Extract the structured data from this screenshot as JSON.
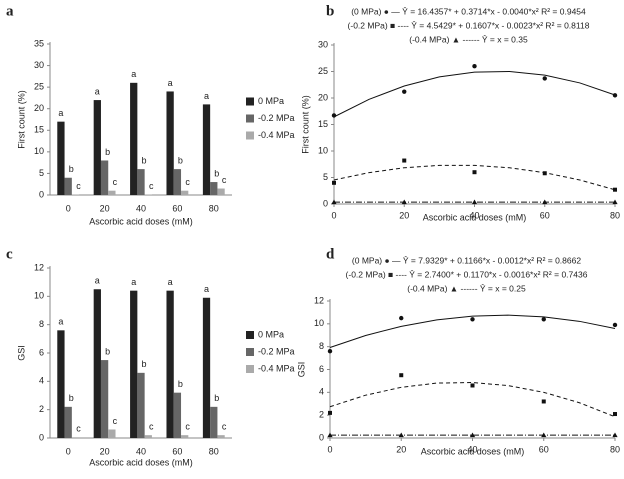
{
  "chart_data": [
    {
      "type": "bar",
      "label": "a",
      "ylabel": "First count (%)",
      "xlabel": "Ascorbic acid doses (mM)",
      "categories": [
        "0",
        "20",
        "40",
        "60",
        "80"
      ],
      "ylim": [
        0,
        35
      ],
      "yticks": [
        0,
        5,
        10,
        15,
        20,
        25,
        30,
        35
      ],
      "series": [
        {
          "name": "0 MPa",
          "color": "#222222",
          "values": [
            17,
            22,
            26,
            24,
            21
          ],
          "letters": [
            "a",
            "a",
            "a",
            "a",
            "a"
          ]
        },
        {
          "name": "-0.2 MPa",
          "color": "#666666",
          "values": [
            4,
            8,
            6,
            6,
            3
          ],
          "letters": [
            "b",
            "b",
            "b",
            "b",
            "b"
          ]
        },
        {
          "name": "-0.4 MPa",
          "color": "#aaaaaa",
          "values": [
            0.1,
            1,
            0.1,
            1,
            1.5
          ],
          "letters": [
            "c",
            "c",
            "c",
            "c",
            "c"
          ]
        }
      ]
    },
    {
      "type": "scatter",
      "label": "b",
      "ylabel": "First count (%)",
      "xlabel": "Ascorbic acid doses (mM)",
      "x": [
        0,
        20,
        40,
        60,
        80
      ],
      "fit_x": [
        0,
        10,
        20,
        30,
        40,
        50,
        60,
        70,
        80
      ],
      "xlim": [
        0,
        80
      ],
      "xticks": [
        0,
        20,
        40,
        60,
        80
      ],
      "ylim": [
        0,
        30
      ],
      "yticks": [
        0,
        5,
        10,
        15,
        20,
        25,
        30
      ],
      "series": [
        {
          "equation": "(0 MPa) ● — Ŷ = 16.4357* + 0.3714*x - 0.0040*x²   R² = 0.9454",
          "marker": "circle",
          "line_style": "solid",
          "color": "#111111",
          "values": [
            16.7,
            21.2,
            26,
            23.7,
            20.5
          ],
          "fit": [
            16.44,
            19.75,
            22.26,
            23.98,
            24.89,
            25.01,
            24.32,
            22.84,
            20.56
          ]
        },
        {
          "equation": "(-0.2 MPa) ■ ---- Ŷ = 4.5429* + 0.1607*x - 0.0023*x²   R² = 0.8118",
          "marker": "square",
          "line_style": "dashed",
          "color": "#111111",
          "values": [
            4,
            8.2,
            6,
            5.8,
            2.7
          ],
          "fit": [
            4.54,
            5.92,
            6.84,
            7.29,
            7.29,
            6.83,
            5.91,
            4.53,
            2.68
          ]
        },
        {
          "equation": "(-0.4 MPa) ▲ ------ Ŷ = x = 0.35",
          "marker": "triangle",
          "line_style": "dashdot",
          "color": "#111111",
          "values": [
            0.35,
            0.35,
            0.35,
            0.35,
            0.35
          ],
          "fit": [
            0.35,
            0.35,
            0.35,
            0.35,
            0.35,
            0.35,
            0.35,
            0.35,
            0.35
          ]
        }
      ]
    },
    {
      "type": "bar",
      "label": "c",
      "ylabel": "GSI",
      "xlabel": "Ascorbic acid doses (mM)",
      "categories": [
        "0",
        "20",
        "40",
        "60",
        "80"
      ],
      "ylim": [
        0,
        12
      ],
      "yticks": [
        0,
        2,
        4,
        6,
        8,
        10,
        12
      ],
      "series": [
        {
          "name": "0 MPa",
          "color": "#222222",
          "values": [
            7.6,
            10.5,
            10.4,
            10.4,
            9.9
          ],
          "letters": [
            "a",
            "a",
            "a",
            "a",
            "a"
          ]
        },
        {
          "name": "-0.2 MPa",
          "color": "#666666",
          "values": [
            2.2,
            5.5,
            4.6,
            3.2,
            2.2
          ],
          "letters": [
            "b",
            "b",
            "b",
            "b",
            "b"
          ]
        },
        {
          "name": "-0.4 MPa",
          "color": "#aaaaaa",
          "values": [
            0.05,
            0.6,
            0.2,
            0.2,
            0.2
          ],
          "letters": [
            "c",
            "c",
            "c",
            "c",
            "c"
          ]
        }
      ]
    },
    {
      "type": "scatter",
      "label": "d",
      "ylabel": "GSI",
      "xlabel": "Ascorbic acid doses (mM)",
      "x": [
        0,
        20,
        40,
        60,
        80
      ],
      "fit_x": [
        0,
        10,
        20,
        30,
        40,
        50,
        60,
        70,
        80
      ],
      "xlim": [
        0,
        80
      ],
      "xticks": [
        0,
        20,
        40,
        60,
        80
      ],
      "ylim": [
        0,
        12
      ],
      "yticks": [
        0,
        2,
        4,
        6,
        8,
        10,
        12
      ],
      "series": [
        {
          "equation": "(0 MPa) ● — Ŷ = 7.9329* + 0.1166*x - 0.0012*x²   R² = 0.8662",
          "marker": "circle",
          "line_style": "solid",
          "color": "#111111",
          "values": [
            7.6,
            10.5,
            10.4,
            10.4,
            9.9
          ],
          "fit": [
            7.93,
            8.98,
            9.78,
            10.35,
            10.68,
            10.76,
            10.61,
            10.22,
            9.59
          ]
        },
        {
          "equation": "(-0.2 MPa) ■ ---- Ŷ = 2.7400* + 0.1170*x - 0.0016*x²   R² = 0.7436",
          "marker": "square",
          "line_style": "dashed",
          "color": "#111111",
          "values": [
            2.2,
            5.5,
            4.6,
            3.2,
            2.1
          ],
          "fit": [
            2.74,
            3.75,
            4.44,
            4.81,
            4.86,
            4.59,
            4.0,
            3.09,
            1.86
          ]
        },
        {
          "equation": "(-0.4 MPa) ▲ ------ Ŷ = x = 0.25",
          "marker": "triangle",
          "line_style": "dashdot",
          "color": "#111111",
          "values": [
            0.25,
            0.25,
            0.25,
            0.25,
            0.25
          ],
          "fit": [
            0.25,
            0.25,
            0.25,
            0.25,
            0.25,
            0.25,
            0.25,
            0.25,
            0.25
          ]
        }
      ]
    }
  ]
}
